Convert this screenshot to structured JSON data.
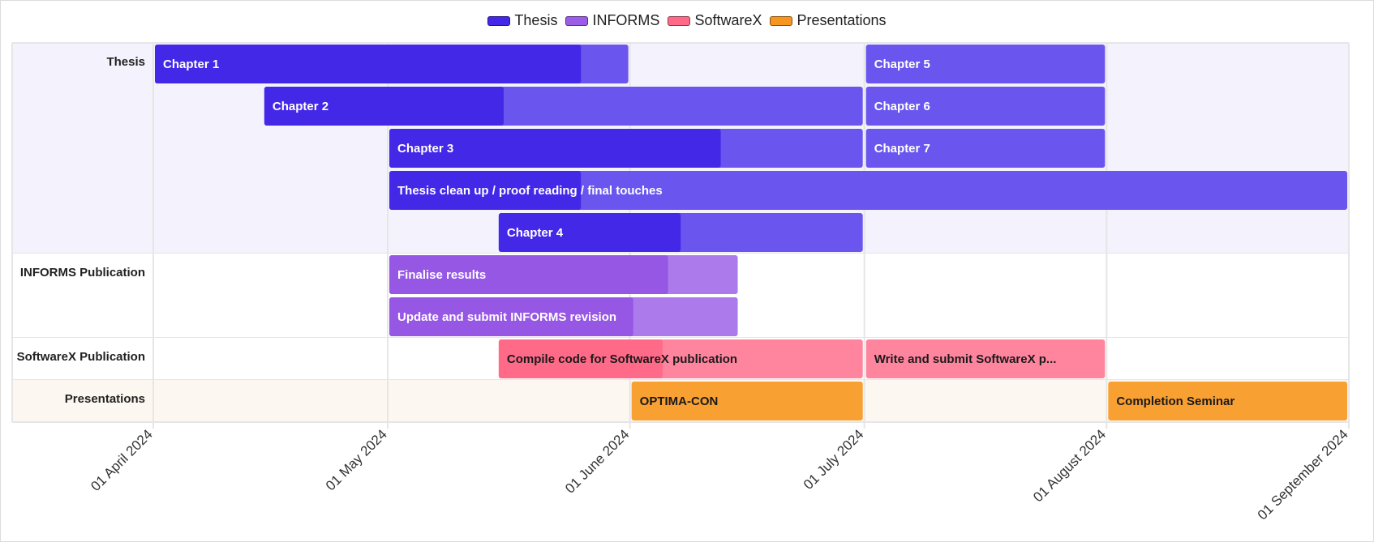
{
  "chart_data": {
    "type": "timeline",
    "title": "",
    "x_axis": {
      "min": "2024-04-01",
      "max": "2024-09-01",
      "ticks": [
        {
          "date": "2024-04-01",
          "label": "01 April 2024"
        },
        {
          "date": "2024-05-01",
          "label": "01 May 2024"
        },
        {
          "date": "2024-06-01",
          "label": "01 June 2024"
        },
        {
          "date": "2024-07-01",
          "label": "01 July 2024"
        },
        {
          "date": "2024-08-01",
          "label": "01 August 2024"
        },
        {
          "date": "2024-09-01",
          "label": "01 September 2024"
        }
      ]
    },
    "legend": {
      "position": "top-center",
      "items": [
        {
          "name": "Thesis",
          "color": "#6a56ee"
        },
        {
          "name": "INFORMS",
          "color": "#9b5ce6"
        },
        {
          "name": "SoftwareX",
          "color": "#ff7f9a"
        },
        {
          "name": "Presentations",
          "color": "#f7961f"
        }
      ]
    },
    "groups": [
      {
        "label": "Thesis",
        "series": "Thesis",
        "background": "#f3f2fd",
        "rows": 5
      },
      {
        "label": "INFORMS Publication",
        "series": "INFORMS",
        "background": "#ffffff",
        "rows": 2
      },
      {
        "label": "SoftwareX Publication",
        "series": "SoftwareX",
        "background": "#ffffff",
        "rows": 1
      },
      {
        "label": "Presentations",
        "series": "Presentations",
        "background": "#fdf7f1",
        "rows": 1
      }
    ],
    "series_colors": {
      "Thesis": {
        "fill": "#6a56ee",
        "progress": "#4428e8",
        "text": "#ffffff"
      },
      "INFORMS": {
        "fill": "#ac7aea",
        "progress": "#9557e4",
        "text": "#ffffff"
      },
      "SoftwareX": {
        "fill": "#ff859e",
        "progress": "#ff6a88",
        "text": "#1a1a1a"
      },
      "Presentations": {
        "fill": "#f9a032",
        "progress": "#f9a032",
        "text": "#1a1a1a"
      }
    },
    "tasks": [
      {
        "group": 0,
        "row": 0,
        "label": "Chapter 1",
        "start": "2024-04-01",
        "end": "2024-06-01",
        "progress": 0.9
      },
      {
        "group": 0,
        "row": 1,
        "label": "Chapter 2",
        "start": "2024-04-15",
        "end": "2024-07-01",
        "progress": 0.4
      },
      {
        "group": 0,
        "row": 2,
        "label": "Chapter 3",
        "start": "2024-05-01",
        "end": "2024-07-01",
        "progress": 0.7
      },
      {
        "group": 0,
        "row": 3,
        "label": "Thesis clean up / proof reading / final touches",
        "start": "2024-05-01",
        "end": "2024-09-01",
        "progress": 0.2
      },
      {
        "group": 0,
        "row": 4,
        "label": "Chapter 4",
        "start": "2024-05-15",
        "end": "2024-07-01",
        "progress": 0.5
      },
      {
        "group": 0,
        "row": 0,
        "label": "Chapter 5",
        "start": "2024-07-01",
        "end": "2024-08-01",
        "progress": 0
      },
      {
        "group": 0,
        "row": 1,
        "label": "Chapter 6",
        "start": "2024-07-01",
        "end": "2024-08-01",
        "progress": 0
      },
      {
        "group": 0,
        "row": 2,
        "label": "Chapter 7",
        "start": "2024-07-01",
        "end": "2024-08-01",
        "progress": 0
      },
      {
        "group": 1,
        "row": 0,
        "label": "Finalise results",
        "start": "2024-05-01",
        "end": "2024-06-15",
        "progress": 0.8
      },
      {
        "group": 1,
        "row": 1,
        "label": "Update and submit INFORMS revision",
        "start": "2024-05-01",
        "end": "2024-06-15",
        "progress": 0.7
      },
      {
        "group": 2,
        "row": 0,
        "label": "Compile code for SoftwareX publication",
        "start": "2024-05-15",
        "end": "2024-07-01",
        "progress": 0.45
      },
      {
        "group": 2,
        "row": 0,
        "label": "Write and submit SoftwareX p...",
        "start": "2024-07-01",
        "end": "2024-08-01",
        "progress": 0
      },
      {
        "group": 3,
        "row": 0,
        "label": "OPTIMA-CON",
        "start": "2024-06-01",
        "end": "2024-07-01",
        "progress": 0
      },
      {
        "group": 3,
        "row": 0,
        "label": "Completion Seminar",
        "start": "2024-08-01",
        "end": "2024-09-01",
        "progress": 0
      }
    ]
  }
}
